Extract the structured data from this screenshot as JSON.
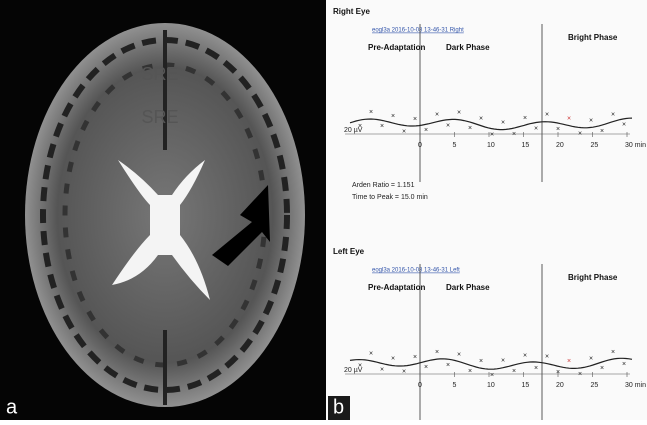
{
  "panels": [
    {
      "label": "a",
      "annotations": [
        "SRE",
        "SRE"
      ]
    },
    {
      "label": "b"
    }
  ],
  "right_eye": {
    "title": "Right Eye",
    "file": "eogl3a 2016-10-08 13-46-31 Right",
    "phases": [
      "Pre-Adaptation",
      "Dark Phase",
      "Bright Phase"
    ],
    "scale": "20 µV",
    "ticks": [
      "0",
      "5",
      "10",
      "15",
      "20",
      "25",
      "30 min"
    ],
    "notes": [
      "Arden Ratio = 1.151",
      "Time to Peak = 15.0 min"
    ]
  },
  "left_eye": {
    "title": "Left Eye",
    "file": "eogl3a 2016-10-08 13-46-31 Left",
    "phases": [
      "Pre-Adaptation",
      "Dark Phase",
      "Bright Phase"
    ],
    "scale": "20 µV",
    "ticks": [
      "0",
      "5",
      "10",
      "15",
      "20",
      "25",
      "30 min"
    ]
  }
}
